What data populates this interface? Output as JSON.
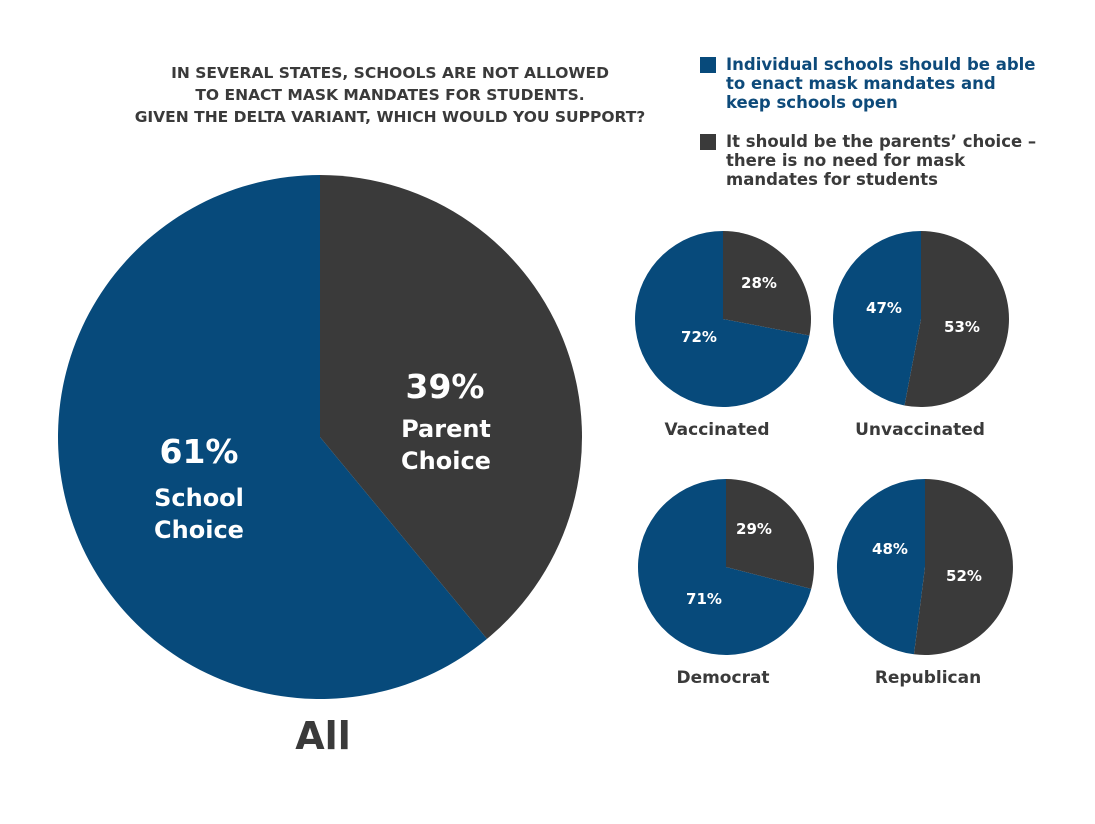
{
  "chart_data": {
    "type": "pie",
    "title_lines": [
      "IN SEVERAL STATES, SCHOOLS ARE NOT ALLOWED",
      "TO ENACT MASK MANDATES FOR STUDENTS.",
      "GIVEN THE DELTA VARIANT, WHICH WOULD YOU SUPPORT?"
    ],
    "legend": [
      {
        "key": "school",
        "color": "#074a7b",
        "lines": [
          "Individual schools should be able",
          "to enact mask mandates and",
          "keep schools open"
        ]
      },
      {
        "key": "parent",
        "color": "#3a3a3a",
        "lines": [
          "It should be the parents’ choice –",
          "there is no need for mask",
          "mandates for students"
        ]
      }
    ],
    "main": {
      "label": "All",
      "school": {
        "value": 61,
        "pct": "61%",
        "label_lines": [
          "School",
          "Choice"
        ]
      },
      "parent": {
        "value": 39,
        "pct": "39%",
        "label_lines": [
          "Parent",
          "Choice"
        ]
      }
    },
    "groups": [
      {
        "label": "Vaccinated",
        "school": 72,
        "parent": 28,
        "school_pct": "72%",
        "parent_pct": "28%"
      },
      {
        "label": "Unvaccinated",
        "school": 47,
        "parent": 53,
        "school_pct": "47%",
        "parent_pct": "53%"
      },
      {
        "label": "Democrat",
        "school": 71,
        "parent": 29,
        "school_pct": "71%",
        "parent_pct": "29%"
      },
      {
        "label": "Republican",
        "school": 48,
        "parent": 52,
        "school_pct": "48%",
        "parent_pct": "52%"
      }
    ]
  }
}
